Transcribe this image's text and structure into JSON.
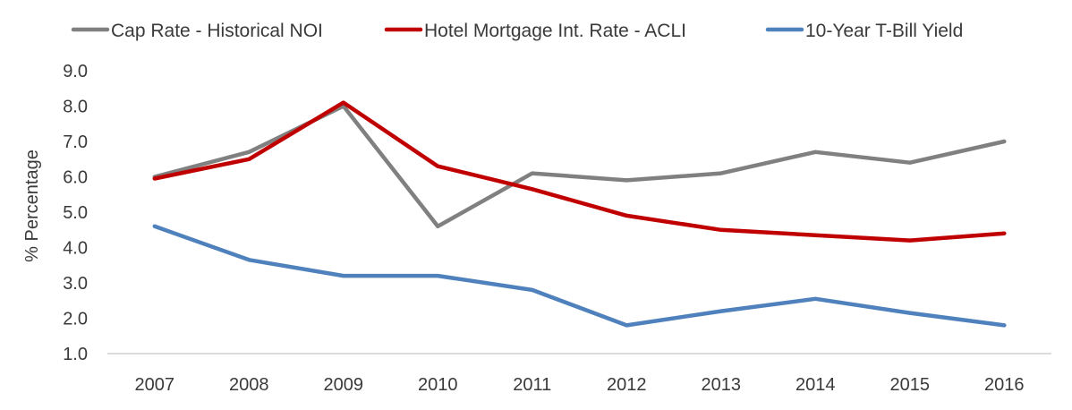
{
  "chart_data": {
    "type": "line",
    "title": "",
    "xlabel": "",
    "ylabel": "% Percentage",
    "categories": [
      "2007",
      "2008",
      "2009",
      "2010",
      "2011",
      "2012",
      "2013",
      "2014",
      "2015",
      "2016"
    ],
    "ylim": [
      1.0,
      9.0
    ],
    "yticks": [
      "1.0",
      "2.0",
      "3.0",
      "4.0",
      "5.0",
      "6.0",
      "7.0",
      "8.0",
      "9.0"
    ],
    "grid": false,
    "legend_position": "top",
    "series": [
      {
        "name": "Cap Rate - Historical NOI",
        "color": "#808080",
        "values": [
          6.0,
          6.7,
          8.0,
          4.6,
          6.1,
          5.9,
          6.1,
          6.7,
          6.4,
          7.0
        ]
      },
      {
        "name": "Hotel Mortgage Int. Rate - ACLI",
        "color": "#c00000",
        "values": [
          5.95,
          6.5,
          8.1,
          6.3,
          5.65,
          4.9,
          4.5,
          4.35,
          4.2,
          4.4
        ]
      },
      {
        "name": "10-Year T-Bill Yield",
        "color": "#4f81bd",
        "values": [
          4.6,
          3.65,
          3.2,
          3.2,
          2.8,
          1.8,
          2.2,
          2.55,
          2.15,
          1.8
        ]
      }
    ]
  }
}
